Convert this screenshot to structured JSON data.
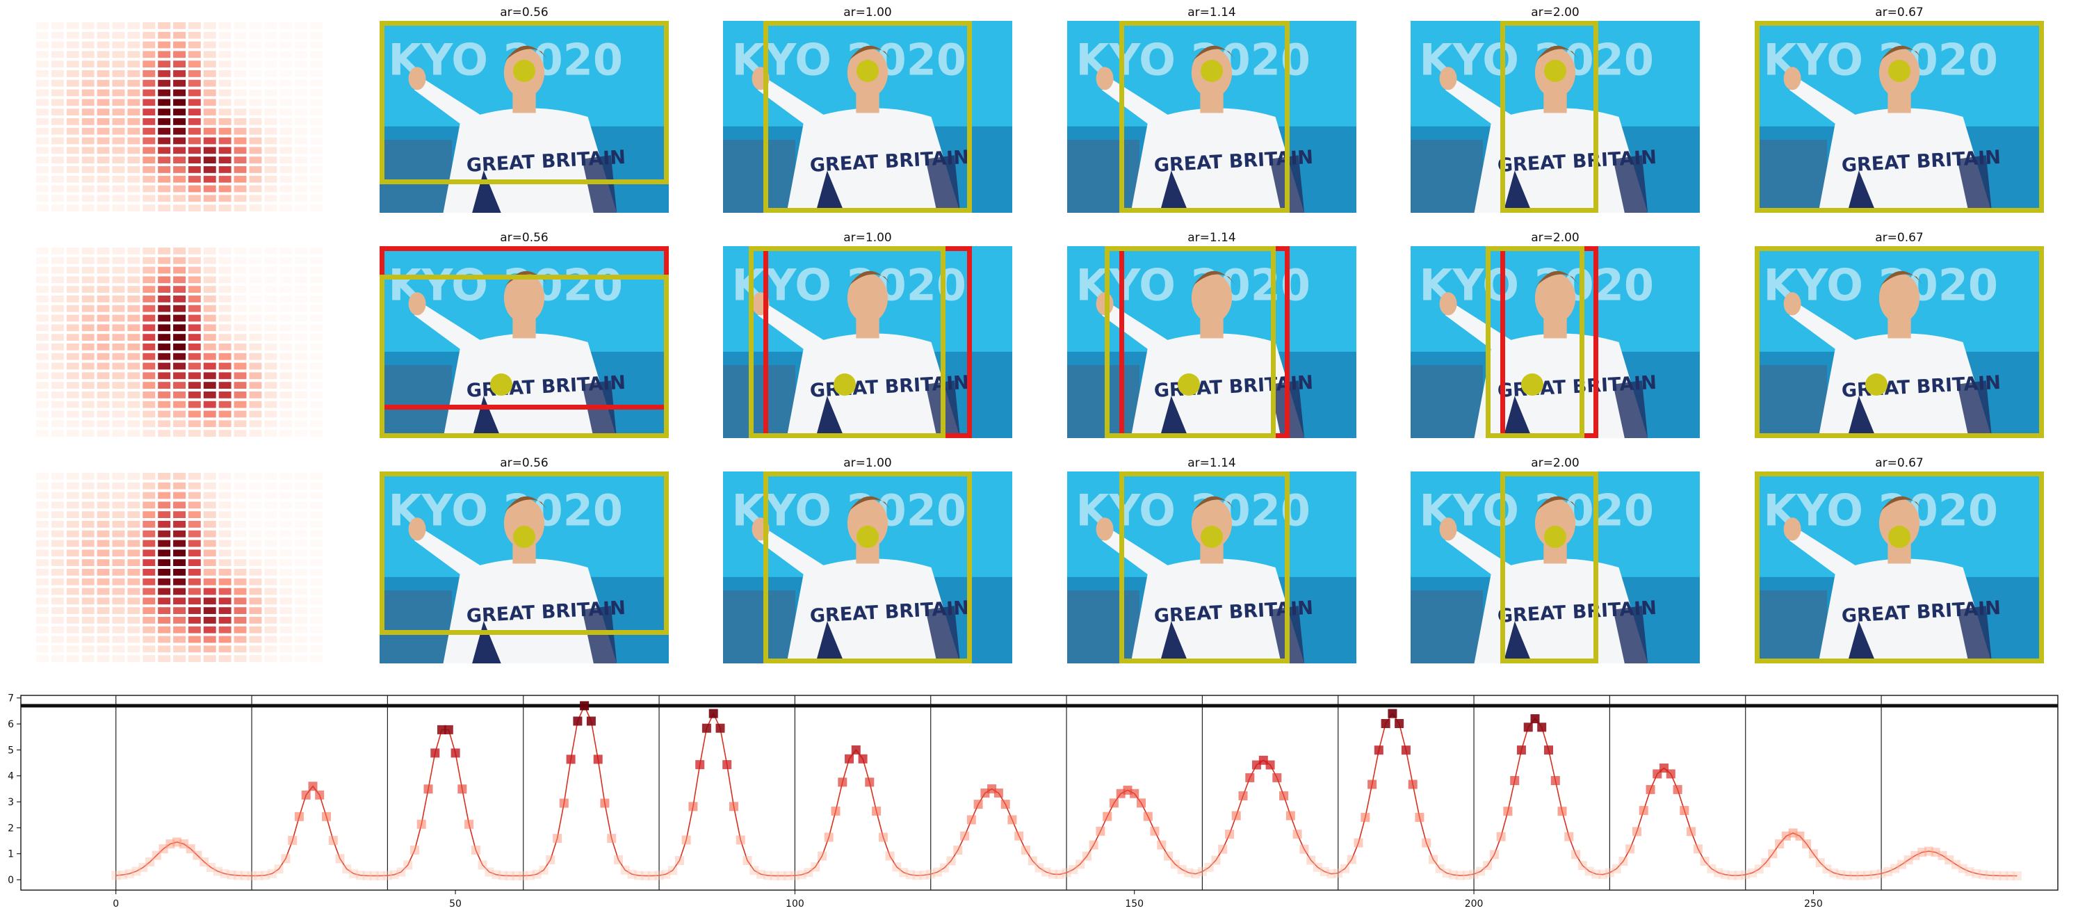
{
  "colors": {
    "box_yellow": "#c2bd17",
    "box_red": "#e51b1b",
    "dot_yellow": "#c9c41a",
    "sky": "#2ebbe8",
    "shirt": "#f4f6f8",
    "skin": "#e6b38f",
    "hair": "#8a5a33",
    "navy": "#1f2f63",
    "line": "#d7301f",
    "hline": "#111111"
  },
  "photo_text": {
    "shirt_text": "GREAT BRITAIN",
    "banner_text": "KYO 2020"
  },
  "panel_titles": [
    "ar=0.56",
    "ar=1.00",
    "ar=1.14",
    "ar=2.00",
    "ar=0.67"
  ],
  "grid": {
    "rows": 3,
    "photo_cols": 5
  },
  "boxes": [
    [
      {
        "yellow": [
          0.0,
          0.0,
          1.0,
          0.85
        ]
      },
      {
        "yellow": [
          0.14,
          0.0,
          0.86,
          1.0
        ]
      },
      {
        "yellow": [
          0.18,
          0.0,
          0.77,
          1.0
        ]
      },
      {
        "yellow": [
          0.31,
          0.0,
          0.65,
          1.0
        ]
      },
      {
        "yellow": [
          0.0,
          0.0,
          1.0,
          1.0
        ]
      }
    ],
    [
      {
        "red": [
          0.0,
          0.0,
          1.0,
          0.85
        ],
        "yellow": [
          0.0,
          0.15,
          1.0,
          1.0
        ]
      },
      {
        "red": [
          0.14,
          0.0,
          0.86,
          1.0
        ],
        "yellow": [
          0.09,
          0.0,
          0.77,
          1.0
        ]
      },
      {
        "red": [
          0.18,
          0.0,
          0.77,
          1.0
        ],
        "yellow": [
          0.13,
          0.0,
          0.72,
          1.0
        ]
      },
      {
        "red": [
          0.31,
          0.0,
          0.65,
          1.0
        ],
        "yellow": [
          0.26,
          0.0,
          0.6,
          1.0
        ]
      },
      {
        "yellow": [
          0.0,
          0.0,
          1.0,
          1.0
        ]
      }
    ],
    [
      {
        "yellow": [
          0.0,
          0.0,
          1.0,
          0.85
        ]
      },
      {
        "yellow": [
          0.14,
          0.0,
          0.86,
          1.0
        ]
      },
      {
        "yellow": [
          0.18,
          0.0,
          0.77,
          1.0
        ]
      },
      {
        "yellow": [
          0.31,
          0.0,
          0.65,
          1.0
        ]
      },
      {
        "yellow": [
          0.0,
          0.0,
          1.0,
          1.0
        ]
      }
    ]
  ],
  "dots": [
    [
      0.5,
      0.26
    ],
    [
      0.42,
      0.72
    ],
    [
      0.5,
      0.34
    ]
  ],
  "chart_data": {
    "type": "line",
    "title": "",
    "xlabel": "",
    "ylabel": "",
    "xlim": [
      -14,
      286
    ],
    "ylim": [
      -0.4,
      7.1
    ],
    "xticks": [
      0,
      50,
      100,
      150,
      200,
      250
    ],
    "yticks": [
      0,
      1,
      2,
      3,
      4,
      5,
      6,
      7
    ],
    "vlines": [
      0,
      20,
      40,
      60,
      80,
      100,
      120,
      140,
      160,
      180,
      200,
      220,
      240,
      260
    ],
    "hline": 6.7,
    "grid": false,
    "peaks": [
      [
        9,
        1.45,
        3
      ],
      [
        29,
        3.6,
        2.2
      ],
      [
        48.5,
        5.9,
        2.4
      ],
      [
        69,
        6.7,
        2.3
      ],
      [
        88,
        6.4,
        2.3
      ],
      [
        109,
        5.0,
        2.6
      ],
      [
        129,
        3.5,
        3.2
      ],
      [
        149,
        3.45,
        3.5
      ],
      [
        169,
        4.6,
        3.5
      ],
      [
        188,
        6.4,
        2.8
      ],
      [
        209,
        6.2,
        3.0
      ],
      [
        228,
        4.3,
        3.0
      ],
      [
        247,
        1.8,
        2.6
      ],
      [
        267,
        1.1,
        3.2
      ]
    ],
    "baseline": 0.15,
    "x_max": 280
  }
}
